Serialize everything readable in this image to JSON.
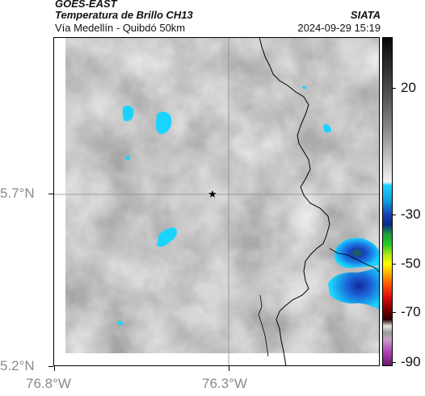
{
  "header": {
    "title": "GOES-EAST",
    "subtitle": "Temperatura de Brillo CH13",
    "region": "Vía Medellín - Quibdó 50km",
    "agency": "SIATA",
    "timestamp": "2024-09-29 15:19"
  },
  "axes": {
    "y_labels": [
      "5.7°N",
      "5.2°N"
    ],
    "x_labels": [
      "76.8°W",
      "76.3°W"
    ]
  },
  "colorbar": {
    "tick_labels": [
      "20",
      "-30",
      "-50",
      "-70",
      "-90"
    ]
  },
  "colors": {
    "cloud_blue": "#1ad4ff",
    "deep_cloud": "#1a3fb8",
    "coastline": "#000000"
  },
  "map": {
    "marker_icon": "star-icon"
  }
}
